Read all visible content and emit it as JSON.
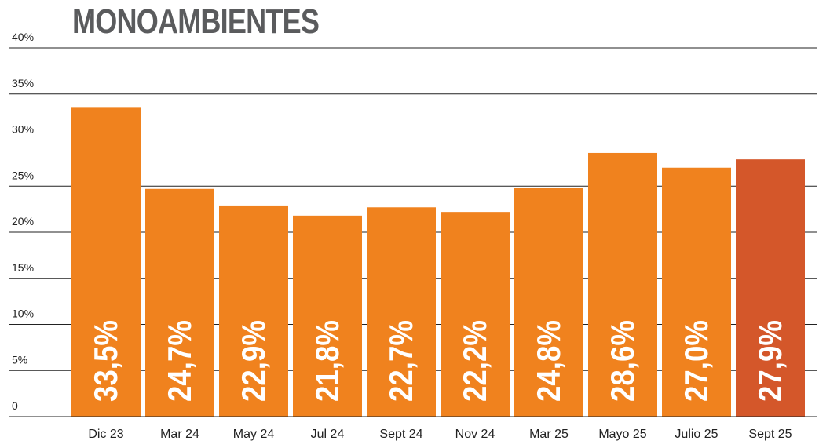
{
  "chart_data": {
    "type": "bar",
    "title": "MONOAMBIENTES",
    "categories": [
      "Dic 23",
      "Mar 24",
      "May 24",
      "Jul 24",
      "Sept 24",
      "Nov 24",
      "Mar 25",
      "Mayo 25",
      "Julio 25",
      "Sept 25"
    ],
    "values": [
      33.5,
      24.7,
      22.9,
      21.8,
      22.7,
      22.2,
      24.8,
      28.6,
      27.0,
      27.9
    ],
    "data_labels": [
      "33,5%",
      "24,7%",
      "22,9%",
      "21,8%",
      "22,7%",
      "22,2%",
      "24,8%",
      "28,6%",
      "27,0%",
      "27,9%"
    ],
    "y_ticks": [
      0,
      5,
      10,
      15,
      20,
      25,
      30,
      35,
      40
    ],
    "y_tick_labels": [
      "0",
      "5%",
      "10%",
      "15%",
      "20%",
      "25%",
      "30%",
      "35%",
      "40%"
    ],
    "ylim": [
      0,
      40
    ],
    "xlabel": "",
    "ylabel": "",
    "grid": true,
    "legend": "none",
    "colors": {
      "bar": "#f0821e",
      "highlight_bar": "#d4572a",
      "grid": "#222222",
      "title": "#5a5b5d",
      "data_label": "#ffffff",
      "axis_text": "#222222"
    },
    "highlight_index": 9
  }
}
